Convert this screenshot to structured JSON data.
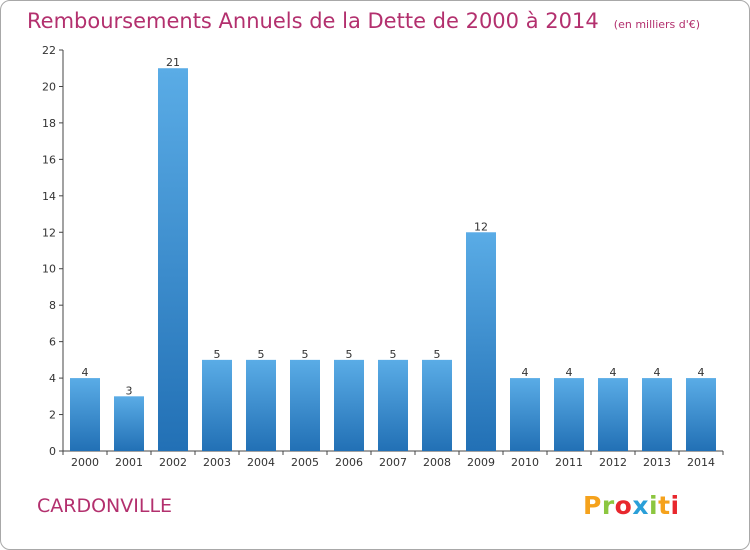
{
  "header": {
    "title": "Remboursements Annuels de la Dette de 2000 à 2014",
    "subtitle": "(en milliers d'€)"
  },
  "footer": {
    "city": "CARDONVILLE",
    "logo": "Proxiti",
    "logo_colors": [
      "#f5a21c",
      "#8cc63f",
      "#e8272d",
      "#2a9fd8",
      "#8cc63f",
      "#f5a21c",
      "#e8272d"
    ]
  },
  "colors": {
    "title": "#b3306e",
    "bar_light": "#5aace6",
    "bar_dark": "#2270b5",
    "axis": "#444444"
  },
  "chart_data": {
    "type": "bar",
    "title": "Remboursements Annuels de la Dette de 2000 à 2014",
    "subtitle": "(en milliers d'€)",
    "categories": [
      "2000",
      "2001",
      "2002",
      "2003",
      "2004",
      "2005",
      "2006",
      "2007",
      "2008",
      "2009",
      "2010",
      "2011",
      "2012",
      "2013",
      "2014"
    ],
    "values": [
      4,
      3,
      21,
      5,
      5,
      5,
      5,
      5,
      5,
      12,
      4,
      4,
      4,
      4,
      4
    ],
    "value_labels": [
      "4",
      "3",
      "21",
      "5",
      "5",
      "5",
      "5",
      "5",
      "5",
      "12",
      "4",
      "4",
      "4",
      "4",
      "4"
    ],
    "yticks": [
      "0",
      "2",
      "4",
      "6",
      "8",
      "10",
      "12",
      "14",
      "16",
      "18",
      "20",
      "22"
    ],
    "ylim": [
      0,
      22
    ],
    "xlabel": "",
    "ylabel": "",
    "grid": false,
    "legend": "none"
  }
}
